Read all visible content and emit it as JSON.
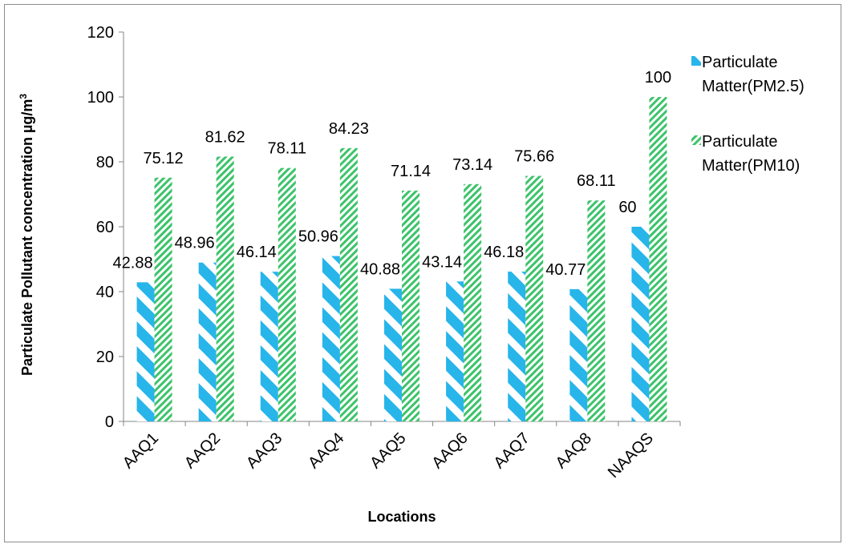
{
  "chart_data": {
    "type": "bar",
    "categories": [
      "AAQ1",
      "AAQ2",
      "AAQ3",
      "AAQ4",
      "AAQ5",
      "AAQ6",
      "AAQ7",
      "AAQ8",
      "NAAQS"
    ],
    "series": [
      {
        "name": "Particulate Matter(PM2.5)",
        "legend_lines": [
          "Particulate",
          "Matter(PM2.5)"
        ],
        "values": [
          42.88,
          48.96,
          46.14,
          50.96,
          40.88,
          43.14,
          46.18,
          40.77,
          60
        ],
        "labels": [
          "42.88",
          "48.96",
          "46.14",
          "50.96",
          "40.88",
          "43.14",
          "46.18",
          "40.77",
          "60"
        ],
        "color": "#27b5ea",
        "pattern": "wide-diagonal"
      },
      {
        "name": "Particulate Matter(PM10)",
        "legend_lines": [
          "Particulate",
          "Matter(PM10)"
        ],
        "values": [
          75.12,
          81.62,
          78.11,
          84.23,
          71.14,
          73.14,
          75.66,
          68.11,
          100
        ],
        "labels": [
          "75.12",
          "81.62",
          "78.11",
          "84.23",
          "71.14",
          "73.14",
          "75.66",
          "68.11",
          "100"
        ],
        "color": "#3cc36a",
        "pattern": "narrow-diagonal"
      }
    ],
    "xlabel": "Locations",
    "ylabel": "Particulate Pollutant concentration µg/m",
    "ylabel_sup": "3",
    "ylim": [
      0,
      120
    ],
    "yticks": [
      "0",
      "20",
      "40",
      "60",
      "80",
      "100",
      "120"
    ],
    "grid": false,
    "legend_position": "right"
  }
}
